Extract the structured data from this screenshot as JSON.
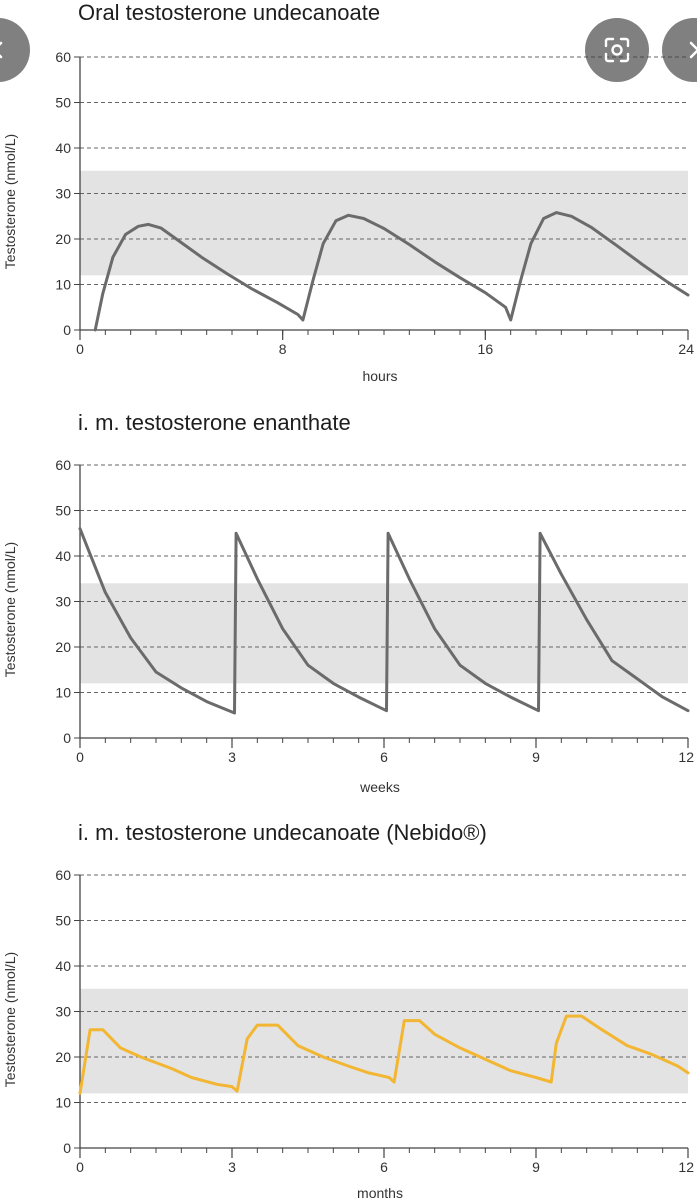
{
  "colors": {
    "band": "#e3e3e3",
    "grid": "#666666",
    "axis": "#444444",
    "overlay": "#3c3c3c"
  },
  "overlay": {
    "back_icon": "chevron-left-icon",
    "lens_icon": "lens-icon",
    "more_icon": "chevron-right-icon"
  },
  "chart_data": [
    {
      "type": "line",
      "title": "Oral testosterone undecanoate",
      "xlabel": "hours",
      "ylabel": "Testosterone (nmol/L)",
      "xlim": [
        0,
        24
      ],
      "ylim": [
        0,
        60
      ],
      "xticks": [
        0,
        8,
        16,
        24
      ],
      "yticks": [
        0,
        10,
        20,
        30,
        40,
        50,
        60
      ],
      "minor_x_step": 1,
      "grid": true,
      "reference_band": [
        12,
        35
      ],
      "line_color": "#6b6b6b",
      "series": [
        {
          "name": "Oral testosterone undecanoate",
          "x": [
            0.6,
            0.9,
            1.3,
            1.8,
            2.3,
            2.7,
            3.2,
            3.8,
            4.8,
            5.8,
            6.8,
            7.8,
            8.6,
            8.8,
            9.2,
            9.6,
            10.1,
            10.6,
            11.2,
            12.0,
            13.0,
            14.0,
            15.0,
            16.0,
            16.8,
            17.0,
            17.4,
            17.8,
            18.3,
            18.8,
            19.4,
            20.2,
            21.2,
            22.2,
            23.2,
            24.0
          ],
          "y": [
            0,
            8,
            16,
            21,
            22.8,
            23.2,
            22.4,
            20,
            16,
            12.4,
            9,
            6,
            3.4,
            2.2,
            11,
            19,
            24,
            25.2,
            24.5,
            22.3,
            18.8,
            15,
            11.5,
            8.2,
            5,
            2.2,
            11,
            19,
            24.5,
            25.8,
            25,
            22.5,
            18.5,
            14.4,
            10.5,
            7.7
          ]
        }
      ]
    },
    {
      "type": "line",
      "title": "i. m. testosterone enanthate",
      "xlabel": "weeks",
      "ylabel": "Testosterone (nmol/L)",
      "xlim": [
        0,
        12
      ],
      "ylim": [
        0,
        60
      ],
      "xticks": [
        0,
        3,
        6,
        9,
        12
      ],
      "yticks": [
        0,
        10,
        20,
        30,
        40,
        50,
        60
      ],
      "minor_x_step": 0.5,
      "grid": true,
      "reference_band": [
        12,
        34
      ],
      "line_color": "#6b6b6b",
      "series": [
        {
          "name": "i. m. testosterone enanthate",
          "x": [
            0,
            0.5,
            1.0,
            1.5,
            2.0,
            2.5,
            3.05,
            3.08,
            3.5,
            4.0,
            4.5,
            5.0,
            5.5,
            6.05,
            6.08,
            6.5,
            7.0,
            7.5,
            8.0,
            8.5,
            9.05,
            9.08,
            9.5,
            10.0,
            10.5,
            11.0,
            11.5,
            12.0
          ],
          "y": [
            46,
            32,
            22,
            14.5,
            11,
            8,
            5.5,
            45,
            35,
            24,
            16,
            12,
            9,
            6,
            45,
            35,
            24,
            16,
            12,
            9,
            6,
            45,
            36,
            26,
            17,
            13,
            9,
            6
          ]
        }
      ]
    },
    {
      "type": "line",
      "title": "i. m. testosterone undecanoate (Nebido®)",
      "xlabel": "months",
      "ylabel": "Testosterone (nmol/L)",
      "xlim": [
        0,
        12
      ],
      "ylim": [
        0,
        60
      ],
      "xticks": [
        0,
        3,
        6,
        9,
        12
      ],
      "yticks": [
        0,
        10,
        20,
        30,
        40,
        50,
        60
      ],
      "minor_x_step": 0.5,
      "grid": true,
      "reference_band": [
        12,
        35
      ],
      "line_color": "#f2b632",
      "series": [
        {
          "name": "i. m. testosterone undecanoate (Nebido®)",
          "x": [
            0,
            0.2,
            0.45,
            0.8,
            1.2,
            1.8,
            2.2,
            2.7,
            3.0,
            3.1,
            3.3,
            3.5,
            3.9,
            4.3,
            4.8,
            5.3,
            5.7,
            6.1,
            6.2,
            6.4,
            6.7,
            7.0,
            7.5,
            8.0,
            8.5,
            9.0,
            9.3,
            9.4,
            9.6,
            9.9,
            10.3,
            10.8,
            11.3,
            11.8,
            12.0
          ],
          "y": [
            12,
            26,
            26,
            22,
            20,
            17.5,
            15.5,
            14,
            13.5,
            12.5,
            24,
            27,
            27,
            22.5,
            20,
            18,
            16.5,
            15.5,
            14.5,
            28,
            28,
            25,
            22,
            19.5,
            17,
            15.5,
            14.5,
            23,
            29,
            29,
            26,
            22.5,
            20.5,
            18,
            16.5
          ]
        }
      ]
    }
  ]
}
